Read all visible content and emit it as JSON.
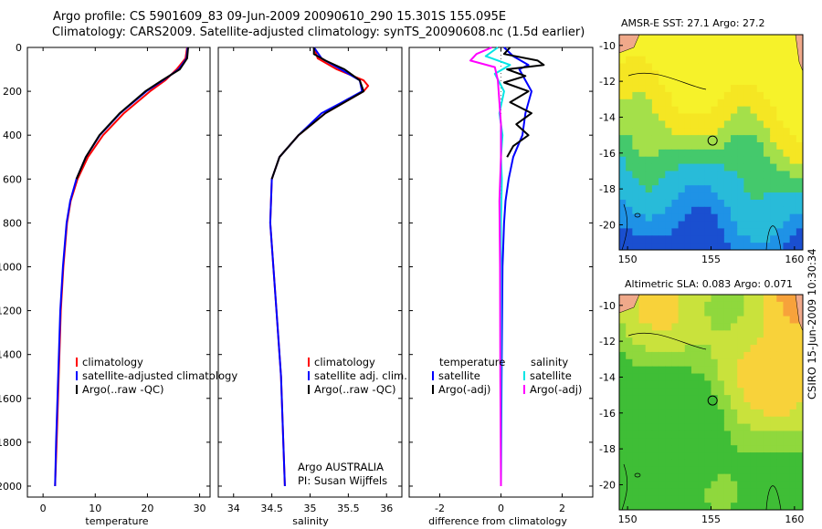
{
  "header": {
    "title_line1": "Argo profile: CS 5901609_83 09-Jun-2009 20090610_290 15.301S 155.095E",
    "title_line2": "Climatology: CARS2009. Satellite-adjusted climatology: synTS_20090608.nc (1.5d earlier)"
  },
  "maps": {
    "sst_title": "AMSR-E SST: 27.1 Argo: 27.2",
    "sla_title": "Altimetric SLA: 0.083 Argo: 0.071",
    "lat_ticks": [
      "-10",
      "-12",
      "-14",
      "-16",
      "-18",
      "-20"
    ],
    "lon_ticks": [
      "150",
      "155",
      "160"
    ],
    "float_position": {
      "lon": 155.095,
      "lat": -15.301
    }
  },
  "credit": "CSIRO 15-Jun-2009 10:30:34",
  "annotation": {
    "line1": "Argo AUSTRALIA",
    "line2": "PI: Susan Wijffels"
  },
  "colors": {
    "climatology": "#ff0000",
    "satellite": "#0000ff",
    "argo": "#000000",
    "sal_satellite": "#00e5e5",
    "sal_argo": "#ff00ff"
  },
  "chart_data": [
    {
      "type": "line",
      "xlabel": "temperature",
      "ylabel": "",
      "xlim": [
        -3,
        32
      ],
      "ylim": [
        2050,
        0
      ],
      "xticks": [
        0,
        10,
        20,
        30
      ],
      "yticks": [
        0,
        200,
        400,
        600,
        800,
        1000,
        1200,
        1400,
        1600,
        1800,
        2000
      ],
      "legend": [
        "climatology",
        "satellite-adjusted climatology",
        "Argo(..raw -QC)"
      ],
      "legend_position": "bottom-center",
      "series": [
        {
          "name": "climatology",
          "color": "#ff0000",
          "depth": [
            0,
            50,
            100,
            150,
            200,
            300,
            400,
            500,
            600,
            700,
            800,
            1000,
            1200,
            1500,
            1800,
            2000
          ],
          "values": [
            27.6,
            27.3,
            25.6,
            23.4,
            20.5,
            15.5,
            11.5,
            8.6,
            6.6,
            5.3,
            4.6,
            3.9,
            3.4,
            3.0,
            2.6,
            2.3
          ]
        },
        {
          "name": "satellite-adjusted climatology",
          "color": "#0000ff",
          "depth": [
            0,
            50,
            100,
            150,
            200,
            300,
            400,
            500,
            600,
            700,
            800,
            1000,
            1200,
            1500,
            1800,
            2000
          ],
          "values": [
            27.7,
            27.5,
            26.0,
            23.0,
            19.8,
            14.8,
            10.9,
            8.2,
            6.4,
            5.2,
            4.5,
            3.8,
            3.3,
            2.9,
            2.5,
            2.3
          ]
        },
        {
          "name": "Argo(..raw -QC)",
          "color": "#000000",
          "depth": [
            0,
            50,
            100,
            150,
            200,
            300,
            400,
            500,
            600
          ],
          "values": [
            27.8,
            27.6,
            26.2,
            22.8,
            19.6,
            14.7,
            10.8,
            8.2,
            6.4
          ]
        }
      ]
    },
    {
      "type": "line",
      "xlabel": "salinity",
      "ylabel": "",
      "xlim": [
        33.8,
        36.2
      ],
      "ylim": [
        2050,
        0
      ],
      "xticks": [
        34,
        34.5,
        35,
        35.5,
        36
      ],
      "legend": [
        "climatology",
        "satellite adj. clim.",
        "Argo(..raw -QC)"
      ],
      "legend_position": "bottom-center",
      "series": [
        {
          "name": "climatology",
          "color": "#ff0000",
          "depth": [
            0,
            50,
            100,
            150,
            175,
            200,
            250,
            300,
            400,
            500,
            600,
            800,
            1000,
            1200,
            1500,
            1800,
            2000
          ],
          "values": [
            35.05,
            35.1,
            35.35,
            35.7,
            35.76,
            35.7,
            35.45,
            35.2,
            34.85,
            34.6,
            34.5,
            34.48,
            34.52,
            34.56,
            34.62,
            34.65,
            34.67
          ]
        },
        {
          "name": "satellite adj. clim.",
          "color": "#0000ff",
          "depth": [
            0,
            50,
            100,
            150,
            200,
            250,
            300,
            400,
            500,
            600,
            800,
            1000,
            1200,
            1500,
            1800,
            2000
          ],
          "values": [
            35.05,
            35.15,
            35.4,
            35.65,
            35.68,
            35.42,
            35.15,
            34.85,
            34.6,
            34.5,
            34.48,
            34.52,
            34.56,
            34.62,
            34.65,
            34.67
          ]
        },
        {
          "name": "Argo(..raw -QC)",
          "color": "#000000",
          "depth": [
            0,
            30,
            60,
            100,
            150,
            200,
            250,
            300,
            400,
            500,
            600
          ],
          "values": [
            35.05,
            35.05,
            35.2,
            35.45,
            35.65,
            35.7,
            35.45,
            35.2,
            34.85,
            34.6,
            34.5
          ]
        }
      ]
    },
    {
      "type": "line",
      "xlabel": "difference from climatology",
      "ylabel": "",
      "xlim": [
        -3,
        3
      ],
      "ylim": [
        2050,
        0
      ],
      "xticks": [
        -2,
        0,
        2
      ],
      "legend_groups": [
        {
          "heading": "temperature",
          "entries": [
            "satellite",
            "Argo(-adj)"
          ]
        },
        {
          "heading": "salinity",
          "entries": [
            "satellite",
            "Argo(-adj)"
          ]
        }
      ],
      "legend_position": "bottom-center",
      "series": [
        {
          "name": "temperature satellite",
          "color": "#0000ff",
          "depth": [
            0,
            40,
            80,
            100,
            150,
            200,
            300,
            400,
            500,
            600,
            700,
            800,
            1000,
            1500,
            2000
          ],
          "values": [
            0.1,
            0.4,
            0.9,
            0.6,
            0.8,
            1.0,
            0.8,
            0.7,
            0.4,
            0.25,
            0.15,
            0.1,
            0.05,
            0.02,
            0.0
          ]
        },
        {
          "name": "temperature Argo(-adj)",
          "color": "#000000",
          "depth": [
            0,
            30,
            60,
            80,
            100,
            130,
            160,
            200,
            250,
            300,
            350,
            400,
            450,
            500
          ],
          "values": [
            0.3,
            0.1,
            1.2,
            1.4,
            0.2,
            0.8,
            0.1,
            0.9,
            0.3,
            1.0,
            0.5,
            0.9,
            0.4,
            0.2
          ]
        },
        {
          "name": "salinity satellite",
          "color": "#00e5e5",
          "depth": [
            0,
            40,
            80,
            120,
            200,
            300,
            400,
            500,
            600,
            800,
            1000,
            1500,
            2000
          ],
          "values": [
            -0.1,
            -0.5,
            0.3,
            -0.2,
            0.1,
            -0.05,
            0.05,
            0.0,
            0.03,
            0.0,
            0.0,
            0.0,
            0.0
          ]
        },
        {
          "name": "salinity Argo(-adj)",
          "color": "#ff00ff",
          "depth": [
            0,
            30,
            60,
            90,
            150,
            250,
            350,
            500,
            700,
            1000,
            1500,
            2000
          ],
          "values": [
            -0.3,
            -0.8,
            -1.0,
            -0.2,
            -0.1,
            -0.05,
            0.0,
            0.0,
            -0.05,
            -0.03,
            -0.02,
            0.0
          ]
        }
      ]
    }
  ]
}
